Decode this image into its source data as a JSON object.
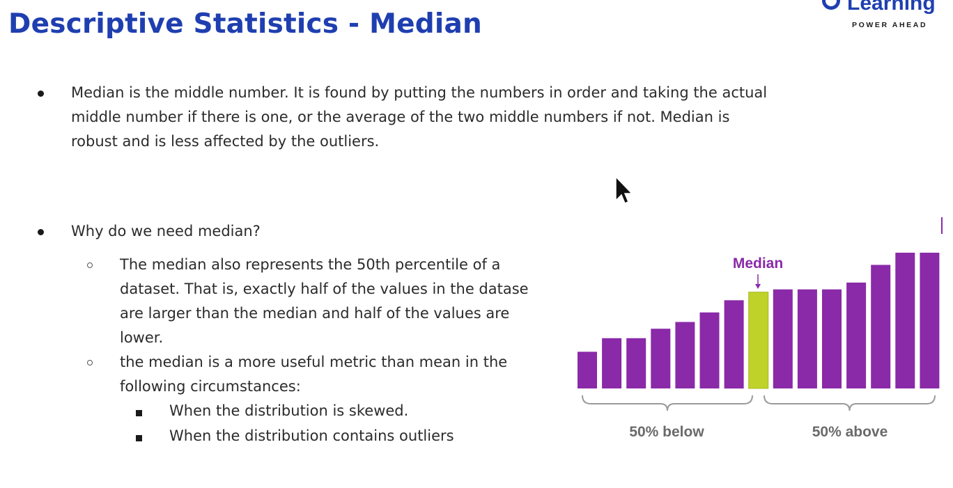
{
  "slide": {
    "title": "Descriptive Statistics - Median",
    "logo": {
      "word": "Learning",
      "tagline": "POWER AHEAD",
      "brand_color": "#1f3fb0"
    },
    "bullets": [
      {
        "lines": [
          "Median is the middle number. It is found by putting the numbers in order and taking the actual",
          "middle number if there is one, or the average of the two middle numbers if not. Median is",
          "robust and is less affected by the outliers."
        ]
      },
      {
        "text": "Why do we need median?",
        "sub": [
          {
            "lines": [
              "The median also represents the 50th percentile of a",
              "dataset. That is, exactly half of the values in the datase",
              "are larger than the median and half of the values are",
              "lower."
            ]
          },
          {
            "lines": [
              "the median is a more useful metric than mean in the",
              "following circumstances:"
            ],
            "sub": [
              "When the distribution is skewed.",
              "When the distribution contains outliers"
            ]
          }
        ]
      }
    ]
  },
  "chart_data": {
    "type": "bar",
    "bar_heights_relative": [
      0.27,
      0.37,
      0.37,
      0.44,
      0.49,
      0.56,
      0.65,
      0.71,
      0.73,
      0.73,
      0.73,
      0.78,
      0.91,
      1.0,
      1.0
    ],
    "highlight_index": 7,
    "bar_color": "#8a2aa8",
    "highlight_color": "#bfd22a",
    "marker_label": "Median",
    "left_label": "50% below",
    "right_label": "50% above",
    "label_color": "#8a2aa8",
    "group_label_color": "#6a6a6a"
  }
}
